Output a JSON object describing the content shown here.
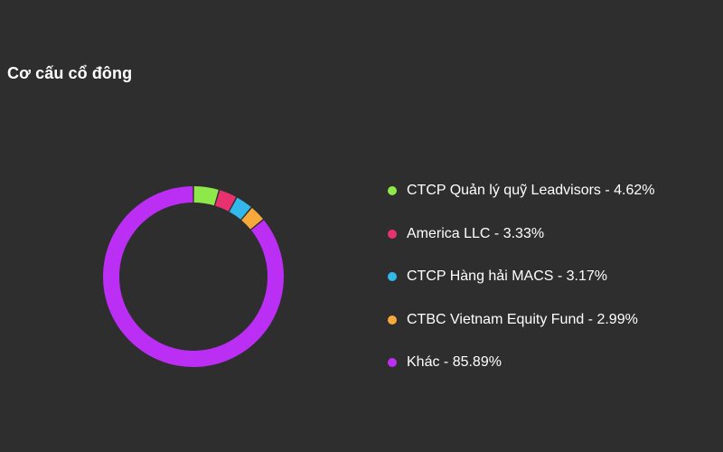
{
  "title": "Cơ cấu cổ đông",
  "chart_data": {
    "type": "pie",
    "title": "Cơ cấu cổ đông",
    "legend_position": "right",
    "slices": [
      {
        "label": "CTCP Quản lý quỹ Leadvisors",
        "value": 4.62,
        "color": "#8ee84a",
        "legend": "CTCP Quản lý quỹ Leadvisors - 4.62%"
      },
      {
        "label": "America LLC",
        "value": 3.33,
        "color": "#e8326f",
        "legend": "America LLC - 3.33%"
      },
      {
        "label": "CTCP Hàng hải MACS",
        "value": 3.17,
        "color": "#33b8ec",
        "legend": "CTCP Hàng hải MACS - 3.17%"
      },
      {
        "label": "CTBC Vietnam Equity Fund",
        "value": 2.99,
        "color": "#f7a93b",
        "legend": "CTBC Vietnam Equity Fund - 2.99%"
      },
      {
        "label": "Khác",
        "value": 85.89,
        "color": "#bb2ef3",
        "legend": "Khác - 85.89%"
      }
    ]
  }
}
